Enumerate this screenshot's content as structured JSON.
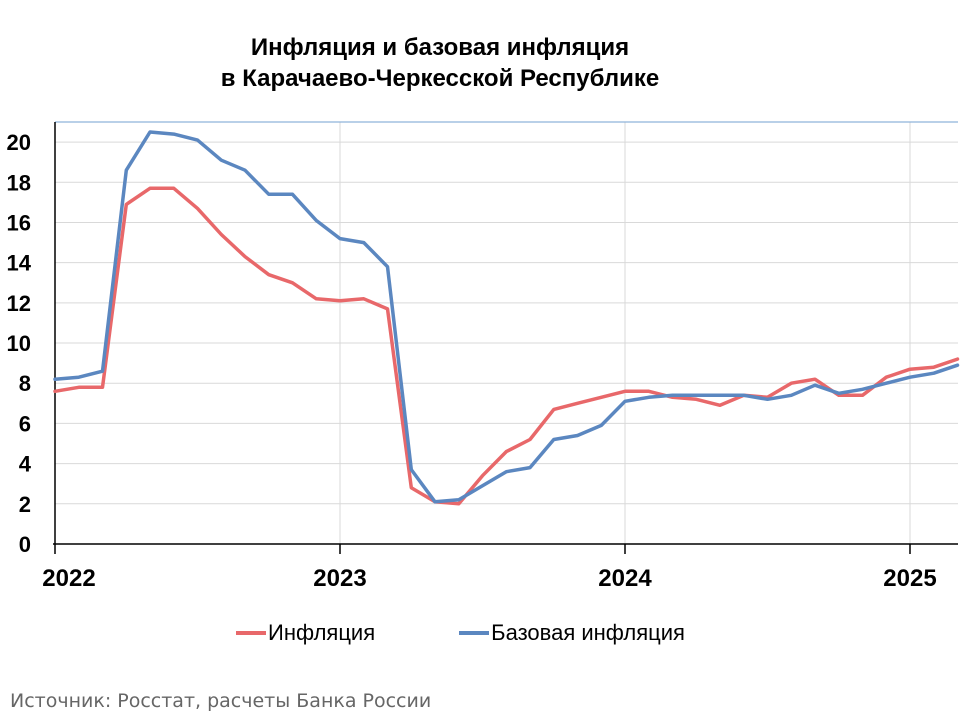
{
  "title": {
    "line1": "Инфляция и базовая инфляция",
    "line2": "в Карачаево-Черкесской Республике"
  },
  "source": "Источник: Росстат, расчеты Банка России",
  "colors": {
    "inflation": "#e8686a",
    "core": "#5b87c0",
    "grid": "#d9d9d9",
    "frame": "#8fb3d9"
  },
  "chart_data": {
    "type": "line",
    "title": "Инфляция и базовая инфляция в Карачаево-Черкесской Республике",
    "xlabel": "",
    "ylabel": "",
    "ylim": [
      0,
      21
    ],
    "yticks": [
      "0",
      "2",
      "4",
      "6",
      "8",
      "10",
      "12",
      "14",
      "16",
      "18",
      "20"
    ],
    "xticks": [
      "2022",
      "2023",
      "2024",
      "2025"
    ],
    "grid": true,
    "legend_position": "bottom",
    "x": [
      "2022-01",
      "2022-02",
      "2022-03",
      "2022-04",
      "2022-05",
      "2022-06",
      "2022-07",
      "2022-08",
      "2022-09",
      "2022-10",
      "2022-11",
      "2022-12",
      "2023-01",
      "2023-02",
      "2023-03",
      "2023-04",
      "2023-05",
      "2023-06",
      "2023-07",
      "2023-08",
      "2023-09",
      "2023-10",
      "2023-11",
      "2023-12",
      "2024-01",
      "2024-02",
      "2024-03",
      "2024-04",
      "2024-05",
      "2024-06",
      "2024-07",
      "2024-08",
      "2024-09",
      "2024-10",
      "2024-11",
      "2024-12",
      "2025-01",
      "2025-02",
      "2025-03"
    ],
    "series": [
      {
        "name": "Инфляция",
        "values": [
          7.6,
          7.8,
          7.8,
          16.9,
          17.7,
          17.7,
          16.7,
          15.4,
          14.3,
          13.4,
          13.0,
          12.2,
          12.1,
          12.2,
          11.7,
          2.8,
          2.1,
          2.0,
          3.4,
          4.6,
          5.2,
          6.7,
          7.0,
          7.3,
          7.6,
          7.6,
          7.3,
          7.2,
          6.9,
          7.4,
          7.3,
          8.0,
          8.2,
          7.4,
          7.4,
          8.3,
          8.7,
          8.8,
          9.2
        ]
      },
      {
        "name": "Базовая инфляция",
        "values": [
          8.2,
          8.3,
          8.6,
          18.6,
          20.5,
          20.4,
          20.1,
          19.1,
          18.6,
          17.4,
          17.4,
          16.1,
          15.2,
          15.0,
          13.8,
          3.7,
          2.1,
          2.2,
          2.9,
          3.6,
          3.8,
          5.2,
          5.4,
          5.9,
          7.1,
          7.3,
          7.4,
          7.4,
          7.4,
          7.4,
          7.2,
          7.4,
          7.9,
          7.5,
          7.7,
          8.0,
          8.3,
          8.5,
          8.9
        ]
      }
    ]
  }
}
